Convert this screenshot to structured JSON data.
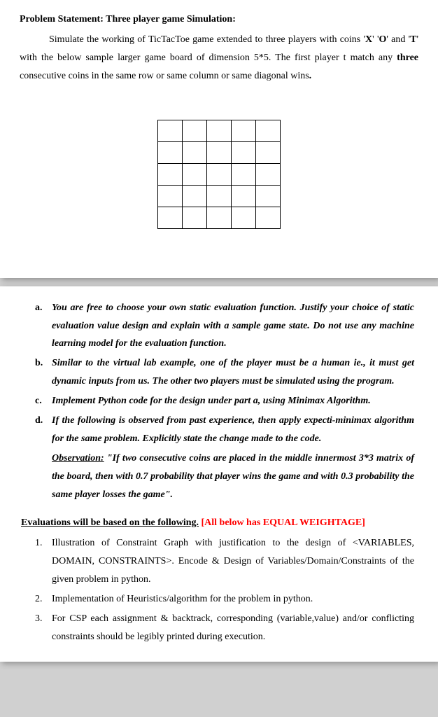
{
  "top": {
    "title": "Problem Statement: Three player game Simulation:",
    "para_part1": "Simulate the working of TicTacToe game extended to three players with coins '",
    "coin_x": "X",
    "para_part2": "' '",
    "coin_o": "O",
    "para_part3": "' and '",
    "coin_t": "T",
    "para_part4": "' with the below sample larger game board of dimension 5*5. The first player t match any ",
    "three": "three",
    "para_part5": " consecutive coins in the same row or same column or same diagonal wins",
    "period": ".",
    "grid": {
      "rows": 5,
      "cols": 5
    }
  },
  "bottom": {
    "a_marker": "a.",
    "a_text": "You are free to choose your own static evaluation function. Justify your choice of static evaluation value design and explain with a sample game state. Do not use any machine learning model for the evaluation function.",
    "b_marker": "b.",
    "b_text": "Similar to the virtual lab example, one of the player must be a human ie., it must get dynamic inputs from us. The other two players must be simulated using the program.",
    "c_marker": "c.",
    "c_text": "Implement Python code for the design under part a, using Minimax Algorithm.",
    "d_marker": "d.",
    "d_text": "If the following is observed from past experience, then apply expecti-minimax algorithm for the same problem. Explicitly state the change made to the code.",
    "obs_label": "Observation:",
    "obs_text": " \"If two consecutive coins are placed in the middle innermost 3*3 matrix of the board, then with 0.7 probability that player wins the game and with 0.3 probability the same player losses the game\".",
    "eval_heading_u": "Evaluations will be based on the following.",
    "eval_heading_red": " [All below has EQUAL WEIGHTAGE]",
    "n1_marker": "1.",
    "n1_text": "Illustration of Constraint Graph with justification to the design of <VARIABLES, DOMAIN, CONSTRAINTS>. Encode & Design of Variables/Domain/Constraints of the given problem in python.",
    "n2_marker": "2.",
    "n2_text": "Implementation of Heuristics/algorithm for the problem in python.",
    "n3_marker": "3.",
    "n3_text": "For CSP each assignment & backtrack, corresponding (variable,value) and/or conflicting constraints should be legibly printed during execution."
  }
}
